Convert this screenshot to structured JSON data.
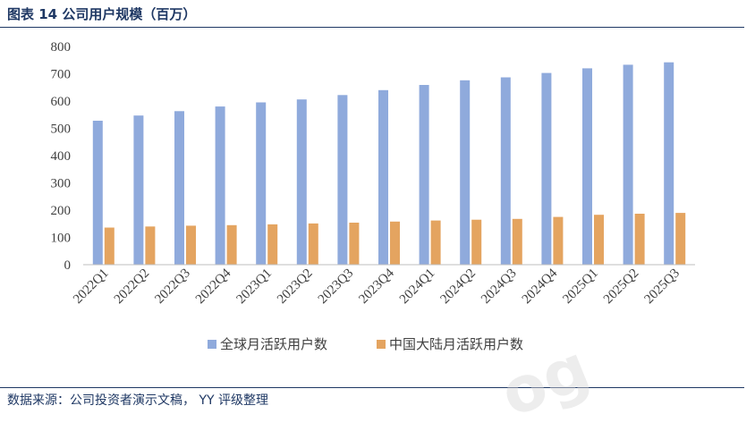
{
  "header": {
    "title": "图表 14 公司用户规模（百万）"
  },
  "footer": {
    "source": "数据来源：公司投资者演示文稿， YY 评级整理"
  },
  "chart_data": {
    "type": "bar",
    "title": "",
    "xlabel": "",
    "ylabel": "",
    "ylim": [
      0,
      800
    ],
    "yticks": [
      0,
      100,
      200,
      300,
      400,
      500,
      600,
      700,
      800
    ],
    "grid": false,
    "legend_position": "bottom",
    "categories": [
      "2022Q1",
      "2022Q2",
      "2022Q3",
      "2022Q4",
      "2023Q1",
      "2023Q2",
      "2023Q3",
      "2023Q4",
      "2024Q1",
      "2024Q2",
      "2024Q3",
      "2024Q4",
      "2025Q1",
      "2025Q2",
      "2025Q3"
    ],
    "series": [
      {
        "name": "全球月活跃用户数",
        "color": "#8faadc",
        "values": [
          528,
          547,
          563,
          580,
          595,
          606,
          622,
          640,
          659,
          676,
          687,
          703,
          720,
          733,
          742
        ]
      },
      {
        "name": "中国大陆月活跃用户数",
        "color": "#e4a460",
        "values": [
          136,
          140,
          143,
          145,
          148,
          151,
          154,
          158,
          162,
          165,
          168,
          175,
          183,
          187,
          190
        ]
      }
    ]
  }
}
